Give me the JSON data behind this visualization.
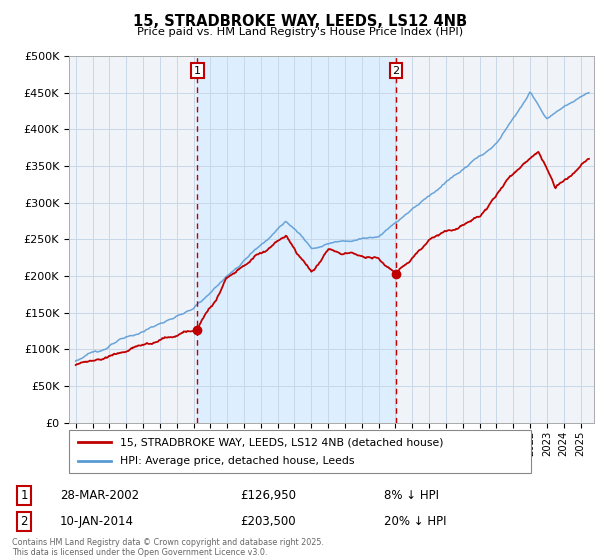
{
  "title": "15, STRADBROKE WAY, LEEDS, LS12 4NB",
  "subtitle": "Price paid vs. HM Land Registry's House Price Index (HPI)",
  "ylabel_ticks": [
    "£0",
    "£50K",
    "£100K",
    "£150K",
    "£200K",
    "£250K",
    "£300K",
    "£350K",
    "£400K",
    "£450K",
    "£500K"
  ],
  "ytick_values": [
    0,
    50000,
    100000,
    150000,
    200000,
    250000,
    300000,
    350000,
    400000,
    450000,
    500000
  ],
  "ylim": [
    0,
    500000
  ],
  "sale1_x": 2002.23,
  "sale1_price": 126950,
  "sale2_x": 2014.03,
  "sale2_price": 203500,
  "legend_line1": "15, STRADBROKE WAY, LEEDS, LS12 4NB (detached house)",
  "legend_line2": "HPI: Average price, detached house, Leeds",
  "annot1_date": "28-MAR-2002",
  "annot1_price": "£126,950",
  "annot1_pct": "8% ↓ HPI",
  "annot2_date": "10-JAN-2014",
  "annot2_price": "£203,500",
  "annot2_pct": "20% ↓ HPI",
  "footer": "Contains HM Land Registry data © Crown copyright and database right 2025.\nThis data is licensed under the Open Government Licence v3.0.",
  "hpi_color": "#5b9bd5",
  "price_color": "#c00000",
  "shade_color": "#ddeeff",
  "vline_color": "#c00000",
  "grid_color": "#c8d8e8",
  "bg_color": "#f0f4f8"
}
